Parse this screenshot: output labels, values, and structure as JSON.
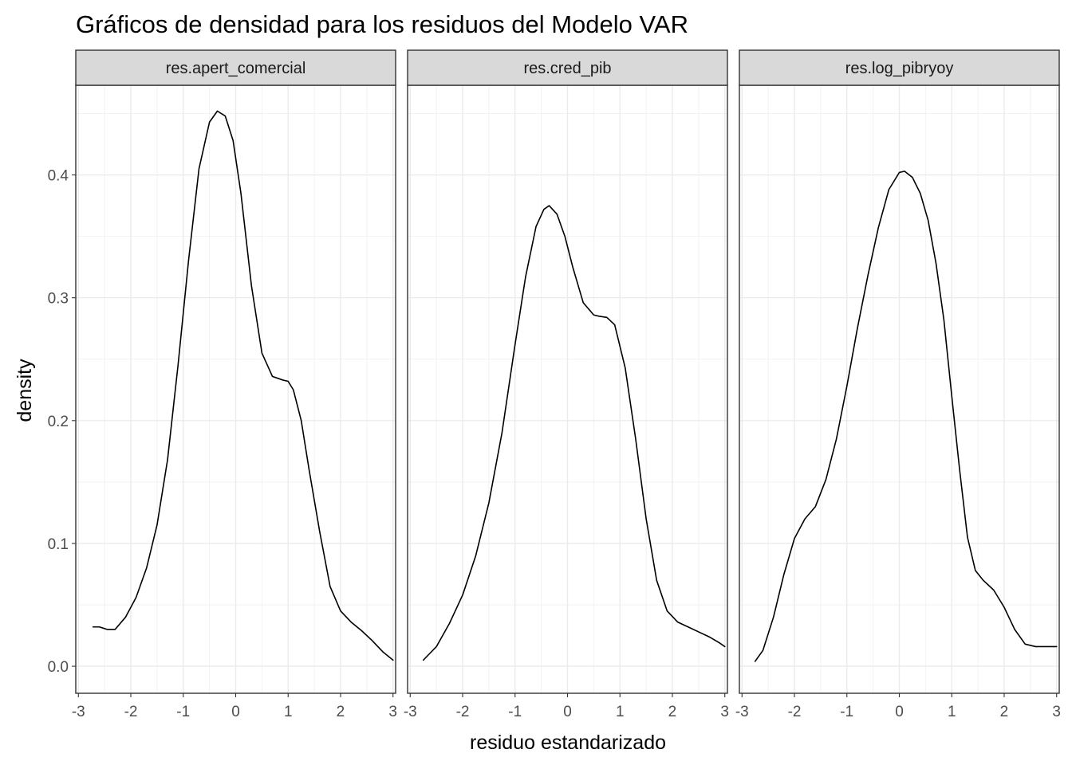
{
  "title": "Gráficos de densidad para los residuos del Modelo VAR",
  "chart_data": {
    "type": "line",
    "title": "Gráficos de densidad para los residuos del Modelo VAR",
    "xlabel": "residuo estandarizado",
    "ylabel": "density",
    "xlim": [
      -3.05,
      3.05
    ],
    "ylim": [
      -0.022,
      0.473
    ],
    "x_ticks": [
      -3,
      -2,
      -1,
      0,
      1,
      2,
      3
    ],
    "x_tick_labels": [
      "-3",
      "-2",
      "-1",
      "0",
      "1",
      "2",
      "3"
    ],
    "y_ticks": [
      0.0,
      0.1,
      0.2,
      0.3,
      0.4
    ],
    "y_tick_labels": [
      "0.0",
      "0.1",
      "0.2",
      "0.3",
      "0.4"
    ],
    "grid": true,
    "line_color": "#000000",
    "strip_fill": "#d9d9d9",
    "panels": [
      {
        "strip": "res.apert_comercial",
        "x": [
          -2.72,
          -2.6,
          -2.45,
          -2.3,
          -2.1,
          -1.9,
          -1.7,
          -1.5,
          -1.3,
          -1.1,
          -0.9,
          -0.7,
          -0.5,
          -0.35,
          -0.2,
          -0.05,
          0.1,
          0.3,
          0.5,
          0.7,
          0.9,
          1.0,
          1.1,
          1.25,
          1.4,
          1.6,
          1.8,
          2.0,
          2.2,
          2.4,
          2.6,
          2.8,
          3.0
        ],
        "y": [
          0.032,
          0.032,
          0.03,
          0.03,
          0.04,
          0.056,
          0.08,
          0.115,
          0.168,
          0.245,
          0.33,
          0.405,
          0.443,
          0.452,
          0.448,
          0.428,
          0.385,
          0.31,
          0.255,
          0.236,
          0.233,
          0.232,
          0.225,
          0.2,
          0.16,
          0.11,
          0.065,
          0.045,
          0.036,
          0.029,
          0.021,
          0.012,
          0.005
        ]
      },
      {
        "strip": "res.cred_pib",
        "x": [
          -2.75,
          -2.5,
          -2.25,
          -2.0,
          -1.75,
          -1.5,
          -1.25,
          -1.0,
          -0.8,
          -0.6,
          -0.45,
          -0.35,
          -0.2,
          -0.05,
          0.1,
          0.3,
          0.5,
          0.6,
          0.75,
          0.9,
          1.1,
          1.3,
          1.5,
          1.7,
          1.9,
          2.1,
          2.3,
          2.5,
          2.7,
          2.9,
          3.0
        ],
        "y": [
          0.005,
          0.016,
          0.035,
          0.058,
          0.09,
          0.133,
          0.19,
          0.262,
          0.317,
          0.358,
          0.372,
          0.375,
          0.368,
          0.35,
          0.325,
          0.296,
          0.286,
          0.285,
          0.284,
          0.278,
          0.243,
          0.185,
          0.12,
          0.07,
          0.045,
          0.036,
          0.032,
          0.028,
          0.024,
          0.019,
          0.016
        ]
      },
      {
        "strip": "res.log_pibryoy",
        "x": [
          -2.75,
          -2.6,
          -2.4,
          -2.2,
          -2.0,
          -1.8,
          -1.6,
          -1.4,
          -1.2,
          -1.0,
          -0.8,
          -0.6,
          -0.4,
          -0.2,
          0.0,
          0.1,
          0.25,
          0.4,
          0.55,
          0.7,
          0.85,
          1.0,
          1.15,
          1.3,
          1.45,
          1.6,
          1.8,
          2.0,
          2.2,
          2.4,
          2.6,
          2.8,
          3.0
        ],
        "y": [
          0.004,
          0.013,
          0.04,
          0.075,
          0.104,
          0.12,
          0.13,
          0.152,
          0.185,
          0.228,
          0.275,
          0.318,
          0.357,
          0.388,
          0.402,
          0.403,
          0.398,
          0.385,
          0.363,
          0.328,
          0.282,
          0.22,
          0.16,
          0.105,
          0.078,
          0.07,
          0.062,
          0.048,
          0.03,
          0.018,
          0.016,
          0.016,
          0.016
        ]
      }
    ]
  }
}
